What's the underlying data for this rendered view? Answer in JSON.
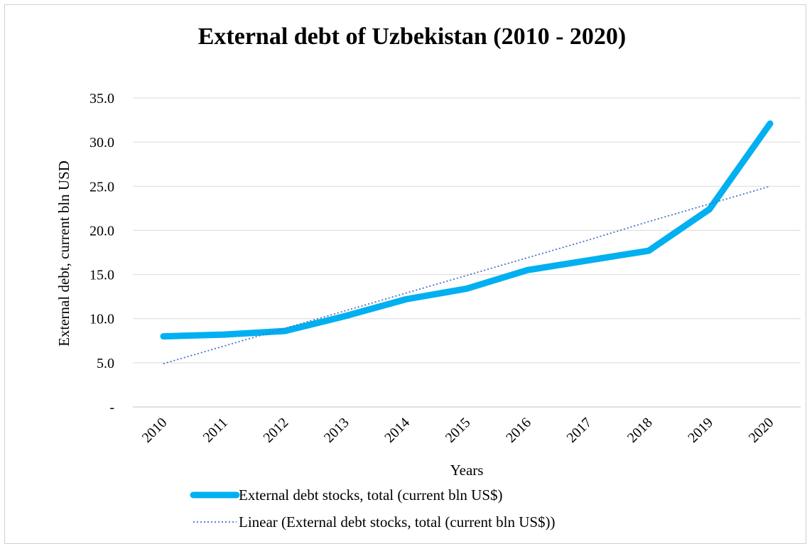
{
  "chart_data": {
    "type": "line",
    "title": "External debt of Uzbekistan (2010 - 2020)",
    "xlabel": "Years",
    "ylabel": "External debt, current bln USD",
    "categories": [
      "2010",
      "2011",
      "2012",
      "2013",
      "2014",
      "2015",
      "2016",
      "2017",
      "2018",
      "2019",
      "2020"
    ],
    "y_tick_labels": [
      "-",
      "5.0",
      "10.0",
      "15.0",
      "20.0",
      "25.0",
      "30.0",
      "35.0"
    ],
    "ylim": [
      0,
      35
    ],
    "grid": "horizontal",
    "legend_position": "bottom",
    "series": [
      {
        "name": "External debt stocks, total (current bln US$)",
        "values": [
          8.0,
          8.2,
          8.6,
          10.3,
          12.2,
          13.4,
          15.5,
          16.6,
          17.7,
          22.4,
          32.1
        ],
        "color": "#00B0F0",
        "style": "solid-thick"
      },
      {
        "name": "Linear (External debt stocks, total (current bln US$))",
        "values": [
          4.9,
          6.9,
          8.9,
          10.9,
          12.9,
          14.9,
          16.9,
          18.9,
          21.0,
          23.0,
          25.0
        ],
        "color": "#4472C4",
        "style": "dotted"
      }
    ]
  }
}
